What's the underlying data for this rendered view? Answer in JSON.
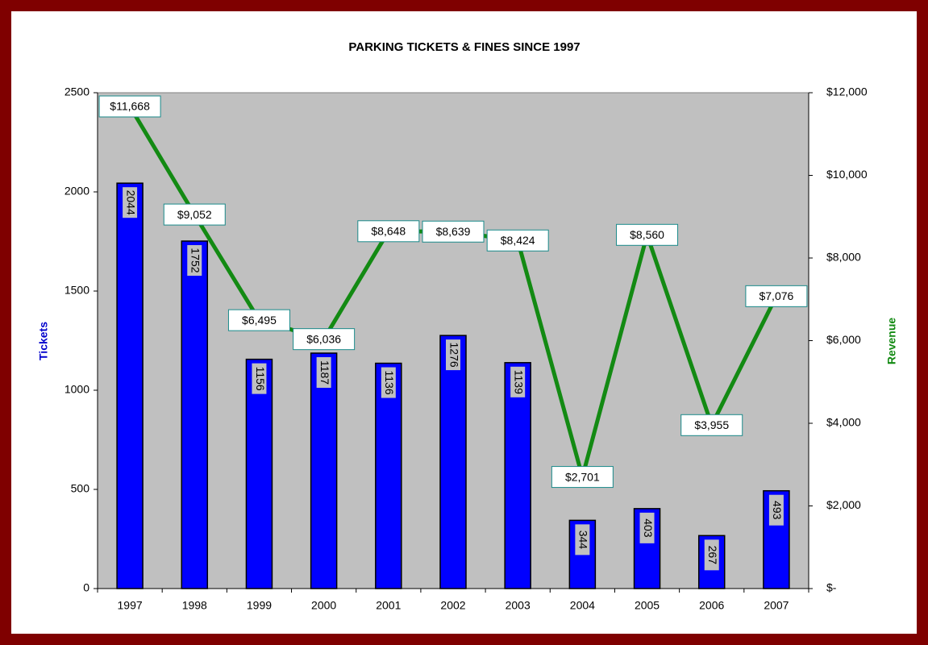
{
  "chart_data": {
    "type": "combo",
    "title": "PARKING TICKETS & FINES SINCE 1997",
    "y_label": "Tickets",
    "y2_label": "Revenue",
    "categories": [
      "1997",
      "1998",
      "1999",
      "2000",
      "2001",
      "2002",
      "2003",
      "2004",
      "2005",
      "2006",
      "2007"
    ],
    "series": [
      {
        "name": "Tickets",
        "type": "bar",
        "color": "#0000ff",
        "values": [
          2044,
          1752,
          1156,
          1187,
          1136,
          1276,
          1139,
          344,
          403,
          267,
          493
        ]
      },
      {
        "name": "Revenue",
        "type": "line",
        "axis": "y2",
        "color": "#138a13",
        "values": [
          11668,
          9052,
          6495,
          6036,
          8648,
          8639,
          8424,
          2701,
          8560,
          3955,
          7076
        ],
        "value_labels": [
          "$11,668",
          "$9,052",
          "$6,495",
          "$6,036",
          "$8,648",
          "$8,639",
          "$8,424",
          "$2,701",
          "$8,560",
          "$3,955",
          "$7,076"
        ]
      }
    ],
    "ylim": [
      0,
      2500
    ],
    "yticks": [
      0,
      500,
      1000,
      1500,
      2000,
      2500
    ],
    "y2lim": [
      0,
      12000
    ],
    "y2ticks": [
      {
        "value": 0,
        "label": "$-"
      },
      {
        "value": 2000,
        "label": "$2,000"
      },
      {
        "value": 4000,
        "label": "$4,000"
      },
      {
        "value": 6000,
        "label": "$6,000"
      },
      {
        "value": 8000,
        "label": "$8,000"
      },
      {
        "value": 10000,
        "label": "$10,000"
      },
      {
        "value": 12000,
        "label": "$12,000"
      }
    ],
    "plot_background": "#c0c0c0",
    "grid": false
  }
}
